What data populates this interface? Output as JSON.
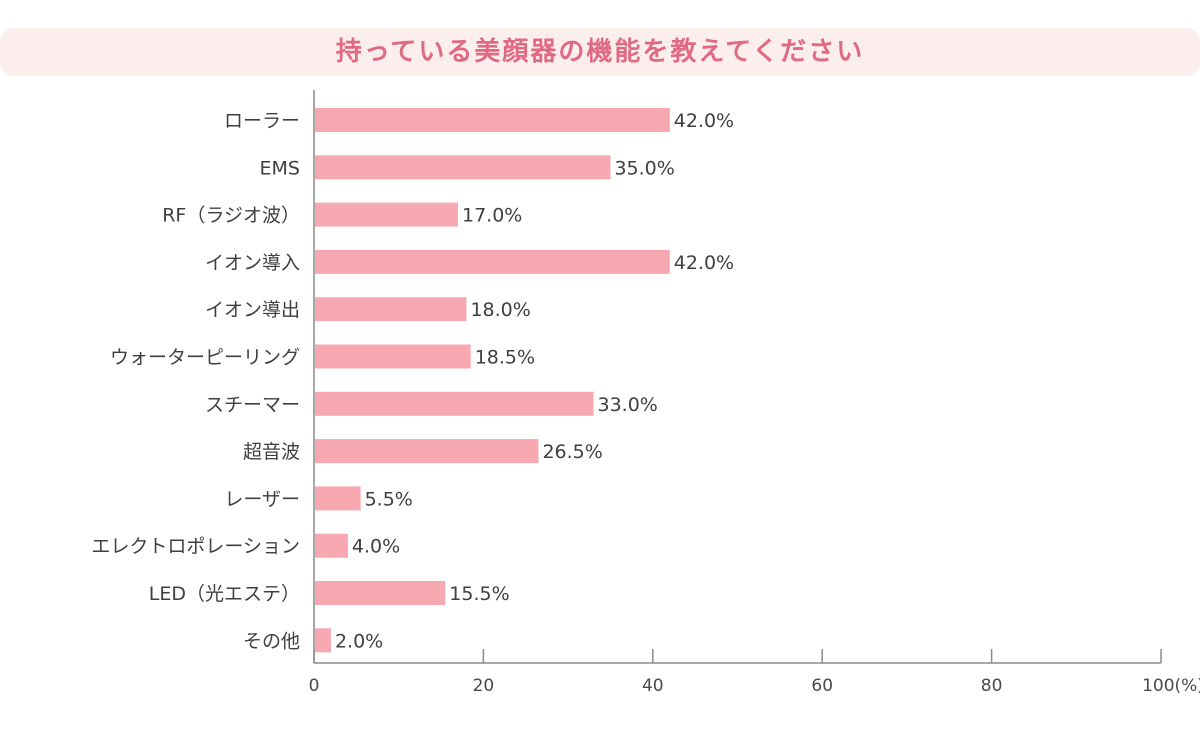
{
  "title": "持っている美顔器の機能を教えてください",
  "colors": {
    "bar": "#f7a8b0",
    "title_bg": "#fdeeee",
    "title_text": "#e06a82",
    "axis": "#8a8a8a"
  },
  "chart_data": {
    "type": "bar",
    "orientation": "horizontal",
    "title": "持っている美顔器の機能を教えてください",
    "categories": [
      "ローラー",
      "EMS",
      "RF（ラジオ波）",
      "イオン導入",
      "イオン導出",
      "ウォーターピーリング",
      "スチーマー",
      "超音波",
      "レーザー",
      "エレクトロポレーション",
      "LED（光エステ）",
      "その他"
    ],
    "values": [
      42.0,
      35.0,
      17.0,
      42.0,
      18.0,
      18.5,
      33.0,
      26.5,
      5.5,
      4.0,
      15.5,
      2.0
    ],
    "value_labels": [
      "42.0%",
      "35.0%",
      "17.0%",
      "42.0%",
      "18.0%",
      "18.5%",
      "33.0%",
      "26.5%",
      "5.5%",
      "4.0%",
      "15.5%",
      "2.0%"
    ],
    "x_ticks": [
      "0",
      "20",
      "40",
      "60",
      "80",
      "100(%)"
    ],
    "xlim": [
      0,
      100
    ],
    "grid": false,
    "legend": "none"
  }
}
